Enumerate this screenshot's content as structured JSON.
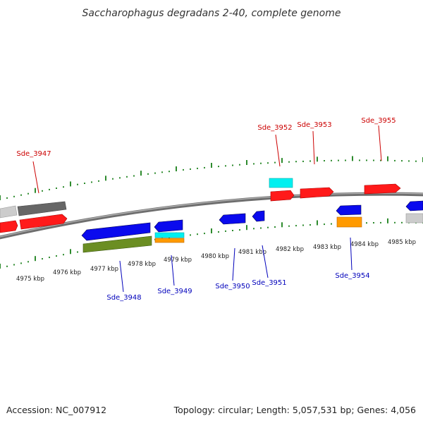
{
  "title": "Saccharophagus degradans 2-40, complete genome",
  "footer": {
    "accession": "Accession: NC_007912",
    "summary": "Topology: circular; Length: 5,057,531 bp; Genes: 4,056"
  },
  "colors": {
    "backbone": "#888888",
    "top_ticks": "#228b22",
    "bottom_ticks": "#228b22",
    "forward_cds": "#ff0000",
    "reverse_cds": "#0000ff",
    "grey_feature": "#777777",
    "light_grey_feature": "#cccccc",
    "olive_feature": "#6b8e23",
    "cyan_feature": "#00e5ee",
    "orange_feature": "#ff9900",
    "label_forward": "#cc0000",
    "label_reverse": "#0000bb"
  },
  "tick_labels": [
    "4975 kbp",
    "4976 kbp",
    "4977 kbp",
    "4978 kbp",
    "4979 kbp",
    "4980 kbp",
    "4981 kbp",
    "4982 kbp",
    "4983 kbp",
    "4984 kbp",
    "4985 kbp"
  ],
  "gene_labels": {
    "forward": [
      "Sde_3947",
      "Sde_3952",
      "Sde_3953",
      "Sde_3955"
    ],
    "reverse": [
      "Sde_3948",
      "Sde_3949",
      "Sde_3950",
      "Sde_3951",
      "Sde_3954"
    ]
  }
}
